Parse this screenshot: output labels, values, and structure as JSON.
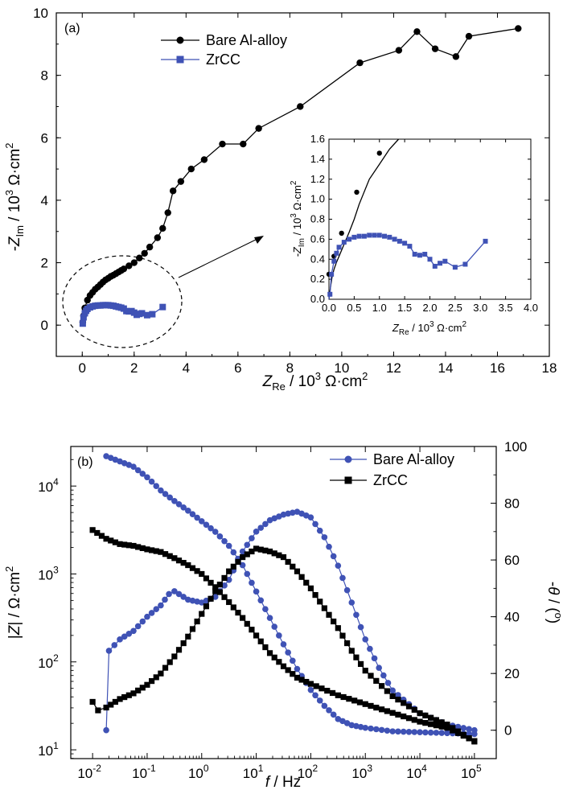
{
  "chart_data": [
    {
      "id": "a",
      "type": "scatter",
      "panel_label": "(a)",
      "xlabel": {
        "main": "Z",
        "sub": "Re",
        "rest": " / 10",
        "sup": "3",
        "unit": " Ω·cm",
        "sup2": "2"
      },
      "ylabel": {
        "main": "-Z",
        "sub": "Im",
        "rest": " / 10",
        "sup": "3",
        "unit": " Ω·cm",
        "sup2": "2"
      },
      "xlim": [
        -1,
        18
      ],
      "ylim": [
        -1,
        10
      ],
      "xticks": [
        "0",
        "2",
        "4",
        "6",
        "8",
        "10",
        "12",
        "14",
        "16",
        "18"
      ],
      "yticks": [
        "0",
        "2",
        "4",
        "6",
        "8",
        "10"
      ],
      "legend_position": "top-left",
      "series": [
        {
          "name": "Bare Al-alloy",
          "color": "#000000",
          "marker": "circle",
          "x": [
            0.02,
            0.05,
            0.1,
            0.2,
            0.3,
            0.4,
            0.5,
            0.6,
            0.7,
            0.8,
            0.9,
            1.0,
            1.1,
            1.2,
            1.3,
            1.4,
            1.5,
            1.6,
            1.8,
            2.0,
            2.2,
            2.4,
            2.6,
            2.9,
            3.1,
            3.3,
            3.5,
            3.8,
            4.2,
            4.7,
            5.4,
            6.2,
            6.8,
            8.4,
            10.7,
            12.2,
            12.9,
            13.6,
            14.4,
            14.9,
            16.8
          ],
          "y": [
            0.1,
            0.3,
            0.55,
            0.8,
            0.95,
            1.05,
            1.15,
            1.22,
            1.3,
            1.38,
            1.45,
            1.5,
            1.56,
            1.6,
            1.65,
            1.7,
            1.75,
            1.8,
            1.9,
            2.0,
            2.15,
            2.3,
            2.5,
            2.8,
            3.1,
            3.6,
            4.3,
            4.6,
            5.0,
            5.3,
            5.8,
            5.8,
            6.3,
            7.0,
            8.4,
            8.8,
            9.4,
            8.85,
            8.6,
            9.25,
            9.5
          ]
        },
        {
          "name": "ZrCC",
          "color": "#3f52b5",
          "marker": "square",
          "x": [
            0.02,
            0.05,
            0.1,
            0.15,
            0.2,
            0.3,
            0.4,
            0.5,
            0.6,
            0.7,
            0.8,
            0.9,
            1.0,
            1.1,
            1.2,
            1.3,
            1.4,
            1.5,
            1.6,
            1.7,
            1.8,
            1.9,
            2.0,
            2.1,
            2.2,
            2.3,
            2.5,
            2.7,
            3.1
          ],
          "y": [
            0.05,
            0.25,
            0.38,
            0.46,
            0.52,
            0.57,
            0.6,
            0.62,
            0.63,
            0.63,
            0.64,
            0.64,
            0.64,
            0.63,
            0.62,
            0.6,
            0.58,
            0.56,
            0.53,
            0.45,
            0.44,
            0.45,
            0.4,
            0.33,
            0.36,
            0.38,
            0.32,
            0.35,
            0.58
          ]
        }
      ],
      "inset": {
        "xlim": [
          0,
          4
        ],
        "ylim": [
          0,
          1.6
        ],
        "xticks": [
          "0.0",
          "0.5",
          "1.0",
          "1.5",
          "2.0",
          "2.5",
          "3.0",
          "3.5",
          "4.0"
        ],
        "yticks": [
          "0.0",
          "0.2",
          "0.4",
          "0.6",
          "0.8",
          "1.0",
          "1.2",
          "1.4",
          "1.6"
        ],
        "bare_curve": {
          "x": [
            0.0,
            0.03,
            0.06,
            0.1,
            0.15,
            0.2,
            0.3,
            0.4,
            0.5,
            0.6,
            0.8,
            1.0,
            1.2,
            1.38
          ],
          "y": [
            0.0,
            0.12,
            0.22,
            0.3,
            0.37,
            0.43,
            0.55,
            0.67,
            0.8,
            0.95,
            1.2,
            1.35,
            1.5,
            1.6
          ]
        },
        "bare_markers": {
          "x": [
            0.0,
            0.1,
            0.25,
            0.55,
            1.0
          ],
          "y": [
            0.25,
            0.43,
            0.66,
            1.07,
            1.46
          ]
        }
      }
    },
    {
      "id": "b",
      "type": "scatter",
      "panel_label": "(b)",
      "xlabel": {
        "main": "f",
        "rest": " / Hz"
      },
      "ylabel": {
        "pre": "|",
        "main": "Z",
        "post": "| / Ω·cm",
        "sup": "2"
      },
      "y2label": {
        "pre": "-",
        "main": "θ",
        "post": " / (",
        "sup": "o",
        "end": ")"
      },
      "xlim_log10": [
        -2.4,
        5.4
      ],
      "ylim_log10": [
        0.9,
        4.45
      ],
      "y2lim": [
        -10,
        100
      ],
      "xticks": [
        "10-2",
        "10-1",
        "100",
        "101",
        "102",
        "103",
        "104",
        "105"
      ],
      "yticks": [
        "101",
        "102",
        "103",
        "104"
      ],
      "y2ticks": [
        "0",
        "20",
        "40",
        "60",
        "80",
        "100"
      ],
      "legend_position": "top-right",
      "series": [
        {
          "name": "Bare Al-alloy",
          "color": "#3f52b5",
          "marker": "circle",
          "modulus_log10": [
            [
              -1.75,
              4.34
            ],
            [
              -1.5,
              4.28
            ],
            [
              -1.25,
              4.22
            ],
            [
              -1.0,
              4.1
            ],
            [
              -0.75,
              3.95
            ],
            [
              -0.5,
              3.83
            ],
            [
              -0.25,
              3.72
            ],
            [
              0.0,
              3.6
            ],
            [
              0.25,
              3.48
            ],
            [
              0.5,
              3.32
            ],
            [
              0.75,
              3.1
            ],
            [
              1.0,
              2.8
            ],
            [
              1.25,
              2.5
            ],
            [
              1.5,
              2.2
            ],
            [
              1.75,
              1.92
            ],
            [
              2.0,
              1.68
            ],
            [
              2.25,
              1.5
            ],
            [
              2.5,
              1.35
            ],
            [
              2.75,
              1.28
            ],
            [
              3.0,
              1.25
            ],
            [
              3.5,
              1.21
            ],
            [
              4.0,
              1.2
            ],
            [
              4.5,
              1.19
            ],
            [
              5.0,
              1.18
            ]
          ],
          "phase_deg": [
            [
              -1.75,
              0
            ],
            [
              -1.7,
              28
            ],
            [
              -1.5,
              32
            ],
            [
              -1.25,
              35
            ],
            [
              -1.0,
              40
            ],
            [
              -0.75,
              44
            ],
            [
              -0.6,
              48
            ],
            [
              -0.5,
              49
            ],
            [
              -0.25,
              46
            ],
            [
              0.0,
              45
            ],
            [
              0.25,
              47
            ],
            [
              0.5,
              53
            ],
            [
              0.75,
              63
            ],
            [
              1.0,
              70
            ],
            [
              1.25,
              74
            ],
            [
              1.5,
              76
            ],
            [
              1.75,
              77
            ],
            [
              2.0,
              75
            ],
            [
              2.25,
              68
            ],
            [
              2.5,
              58
            ],
            [
              2.75,
              45
            ],
            [
              3.0,
              32
            ],
            [
              3.25,
              22
            ],
            [
              3.5,
              14
            ],
            [
              4.0,
              6
            ],
            [
              4.5,
              2
            ],
            [
              5.0,
              0
            ]
          ]
        },
        {
          "name": "ZrCC",
          "color": "#000000",
          "marker": "square",
          "modulus_log10": [
            [
              -2.0,
              3.5
            ],
            [
              -1.75,
              3.4
            ],
            [
              -1.5,
              3.34
            ],
            [
              -1.25,
              3.32
            ],
            [
              -1.0,
              3.28
            ],
            [
              -0.75,
              3.25
            ],
            [
              -0.5,
              3.18
            ],
            [
              -0.25,
              3.1
            ],
            [
              0.0,
              3.0
            ],
            [
              0.25,
              2.85
            ],
            [
              0.5,
              2.68
            ],
            [
              0.75,
              2.5
            ],
            [
              1.0,
              2.3
            ],
            [
              1.25,
              2.1
            ],
            [
              1.5,
              1.95
            ],
            [
              1.75,
              1.82
            ],
            [
              2.0,
              1.75
            ],
            [
              2.5,
              1.62
            ],
            [
              3.0,
              1.52
            ],
            [
              3.5,
              1.42
            ],
            [
              4.0,
              1.32
            ],
            [
              4.5,
              1.25
            ],
            [
              5.0,
              1.1
            ]
          ],
          "phase_deg": [
            [
              -2.0,
              10
            ],
            [
              -1.9,
              7
            ],
            [
              -1.75,
              8
            ],
            [
              -1.5,
              11
            ],
            [
              -1.25,
              13
            ],
            [
              -1.0,
              16
            ],
            [
              -0.75,
              20
            ],
            [
              -0.5,
              26
            ],
            [
              -0.25,
              33
            ],
            [
              0.0,
              41
            ],
            [
              0.25,
              49
            ],
            [
              0.5,
              56
            ],
            [
              0.75,
              61
            ],
            [
              1.0,
              64
            ],
            [
              1.25,
              63
            ],
            [
              1.5,
              61
            ],
            [
              1.75,
              56
            ],
            [
              2.0,
              50
            ],
            [
              2.25,
              43
            ],
            [
              2.5,
              36
            ],
            [
              2.75,
              28
            ],
            [
              3.0,
              21
            ],
            [
              3.5,
              12
            ],
            [
              4.0,
              6
            ],
            [
              4.5,
              2
            ],
            [
              5.0,
              -4
            ]
          ]
        }
      ]
    }
  ]
}
